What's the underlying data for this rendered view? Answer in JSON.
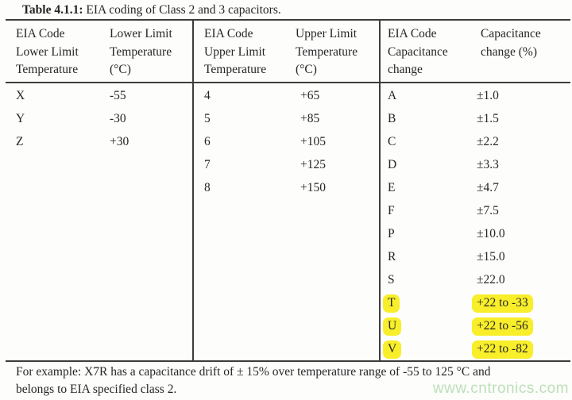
{
  "title": {
    "label_bold": "Table 4.1.1:",
    "label_rest": " EIA coding of Class 2 and 3 capacitors."
  },
  "table": {
    "groups": [
      {
        "header_code": "EIA Code\nLower Limit\nTemperature",
        "header_value": "Lower Limit\nTemperature\n(°C)",
        "rows": [
          {
            "code": "X",
            "value": "-55"
          },
          {
            "code": "Y",
            "value": "-30"
          },
          {
            "code": "Z",
            "value": "+30"
          }
        ]
      },
      {
        "header_code": "EIA Code\nUpper Limit\nTemperature",
        "header_value": "Upper Limit\nTemperature\n(°C)",
        "rows": [
          {
            "code": "4",
            "value": "+65"
          },
          {
            "code": "5",
            "value": "+85"
          },
          {
            "code": "6",
            "value": "+105"
          },
          {
            "code": "7",
            "value": "+125"
          },
          {
            "code": "8",
            "value": "+150"
          }
        ]
      },
      {
        "header_code": "EIA Code\nCapacitance\nchange",
        "header_value": "Capacitance\nchange (%)",
        "rows": [
          {
            "code": "A",
            "value": "±1.0"
          },
          {
            "code": "B",
            "value": "±1.5"
          },
          {
            "code": "C",
            "value": "±2.2"
          },
          {
            "code": "D",
            "value": "±3.3"
          },
          {
            "code": "E",
            "value": "±4.7"
          },
          {
            "code": "F",
            "value": "±7.5"
          },
          {
            "code": "P",
            "value": "±10.0"
          },
          {
            "code": "R",
            "value": "±15.0"
          },
          {
            "code": "S",
            "value": "±22.0"
          },
          {
            "code": "T",
            "value": "+22 to -33",
            "highlighted": true
          },
          {
            "code": "U",
            "value": "+22 to -56",
            "highlighted": true
          },
          {
            "code": "V",
            "value": "+22 to -82",
            "highlighted": true
          }
        ]
      }
    ]
  },
  "footer": {
    "note": "For example: X7R has a capacitance drift of ± 15% over temperature range of -55 to 125 °C and\nbelongs to EIA specified class 2."
  },
  "watermark": {
    "text": "www.cntronics.com"
  },
  "colors": {
    "highlight": "#f8ee2a",
    "rule": "#3d3d3d",
    "text": "#262626",
    "watermark": "#bcdfb8"
  }
}
